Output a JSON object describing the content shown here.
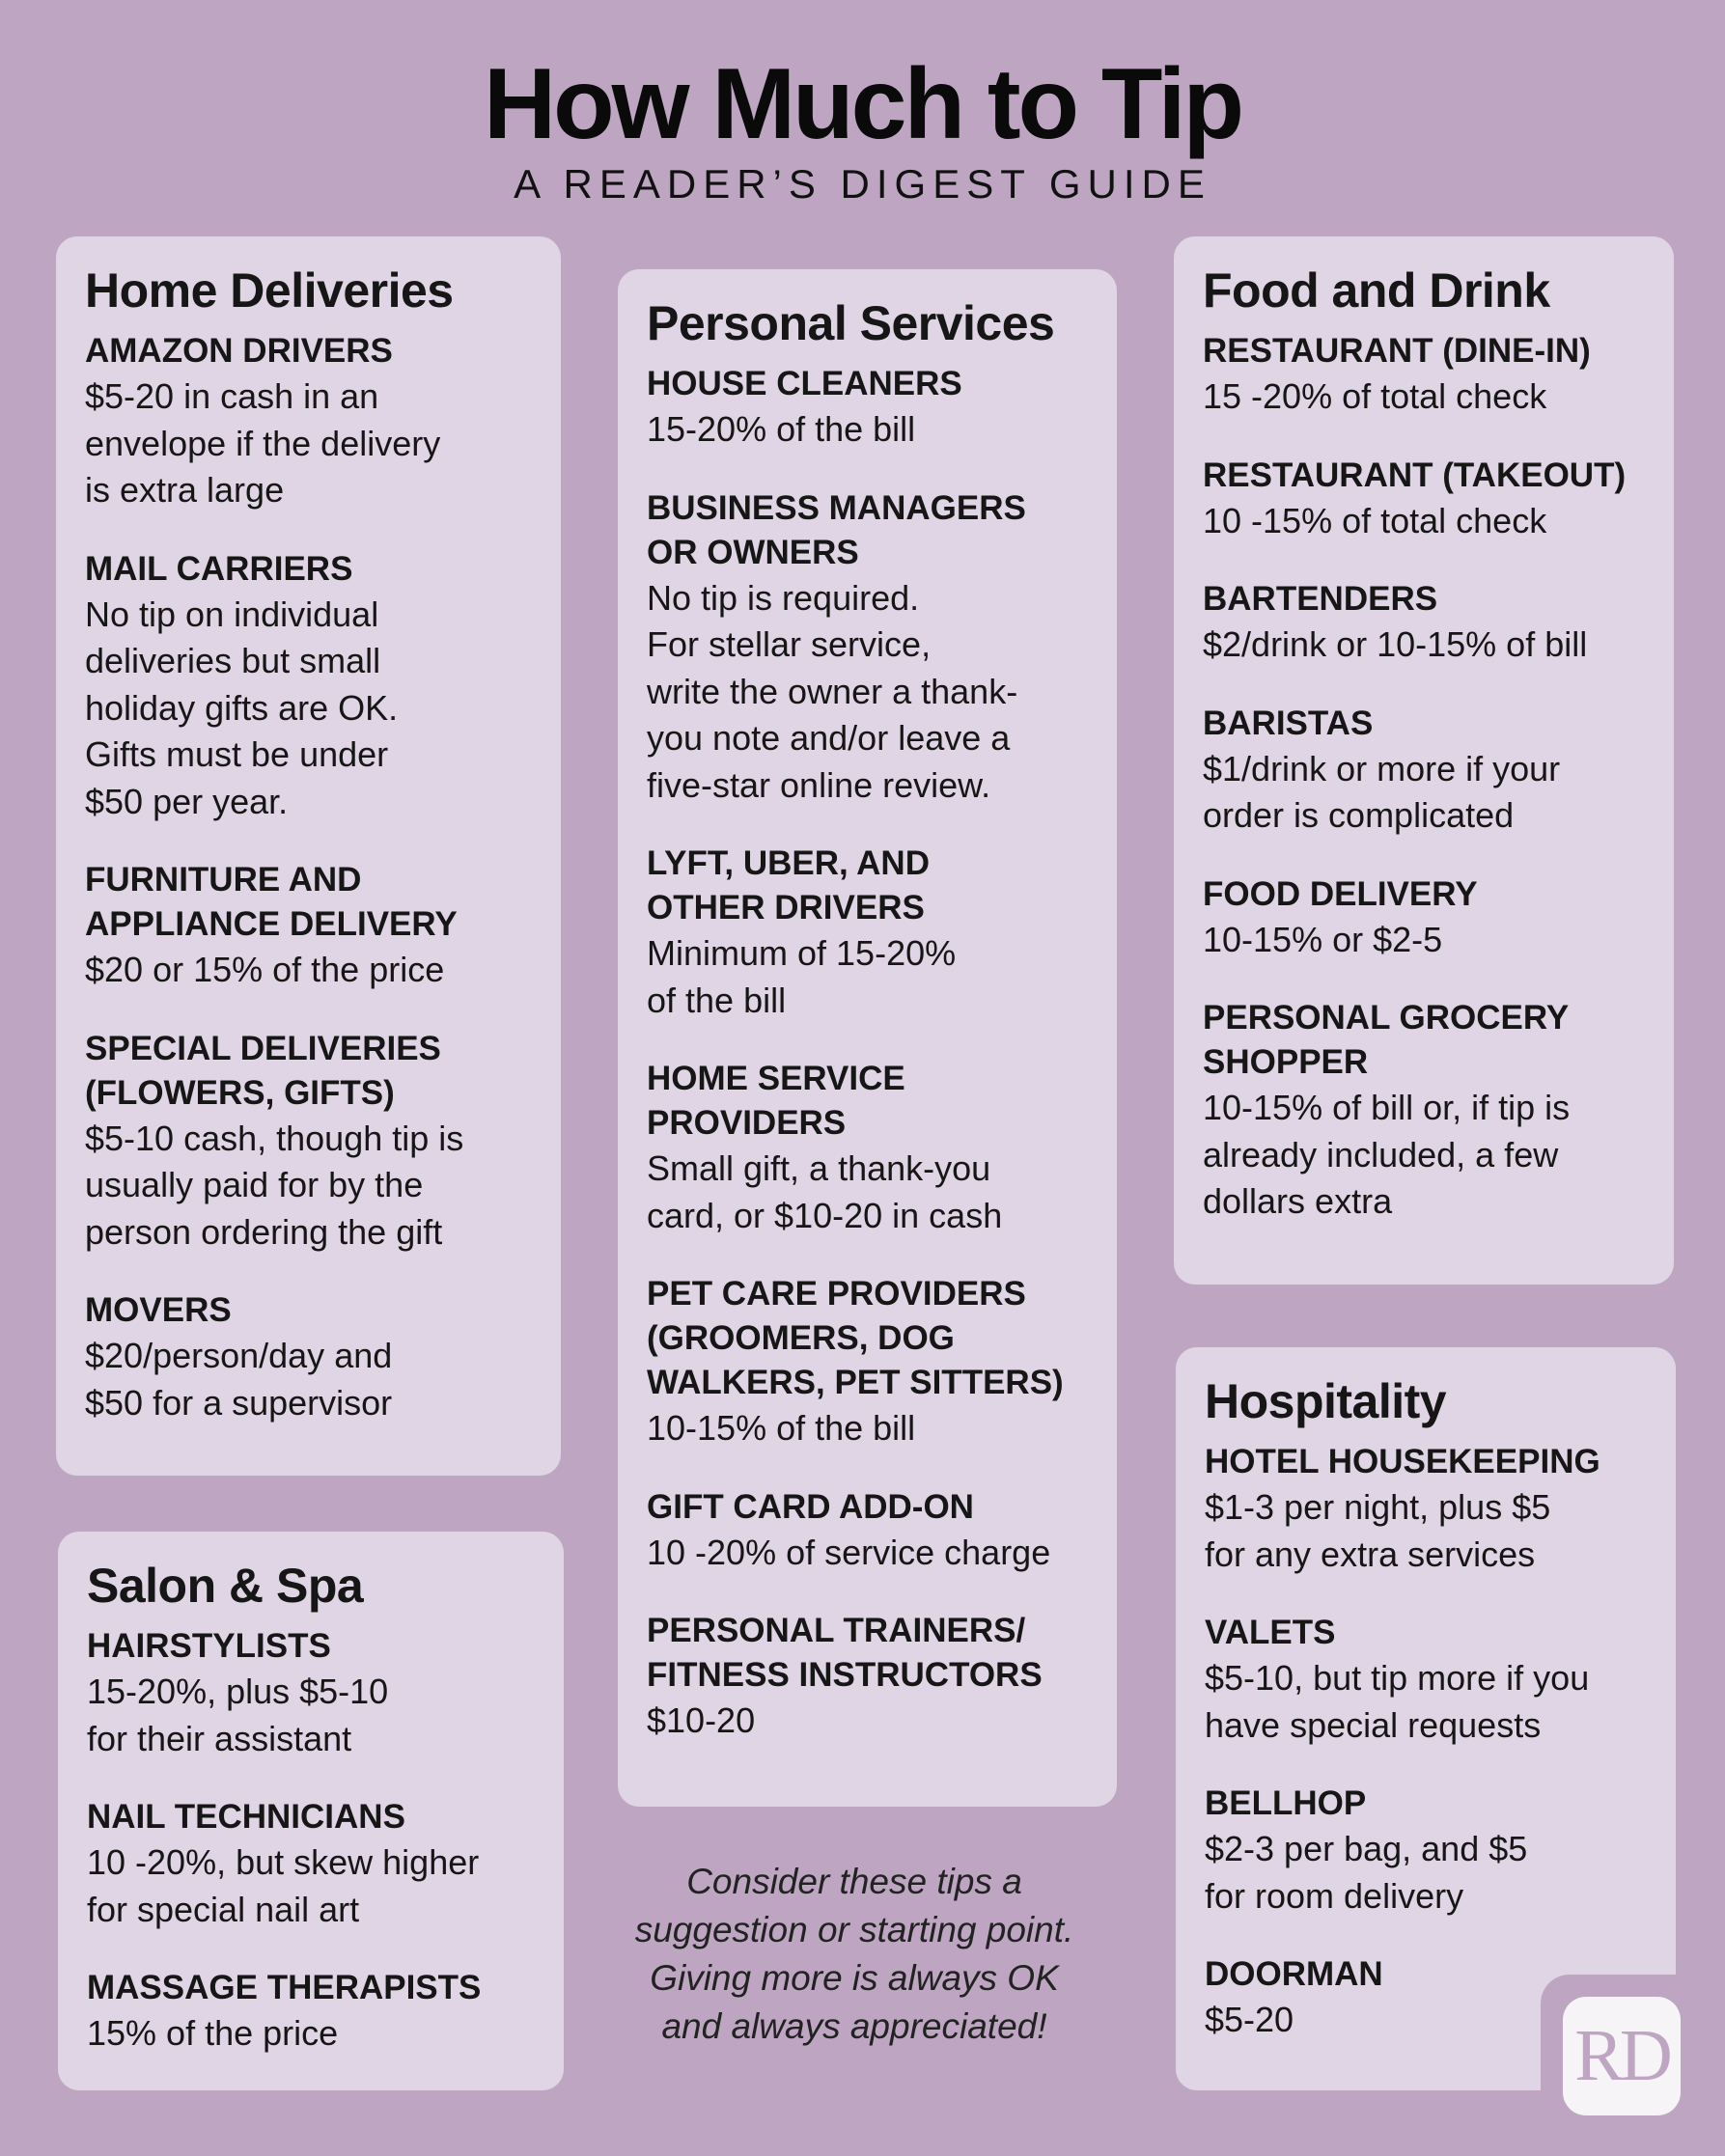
{
  "header": {
    "title": "How Much to Tip",
    "subtitle": "A READER’S DIGEST GUIDE"
  },
  "colors": {
    "background": "#bea6c3",
    "card": "#e0d5e4",
    "logo_text": "#bea6c3"
  },
  "home_deliveries": {
    "heading": "Home Deliveries",
    "items": [
      {
        "title": "AMAZON DRIVERS",
        "body": "$5-20 in cash in an\nenvelope if the delivery\nis extra large"
      },
      {
        "title": "MAIL CARRIERS",
        "body": "No tip on individual\ndeliveries but small\nholiday gifts are OK.\nGifts must be under\n$50 per year."
      },
      {
        "title": "FURNITURE AND\nAPPLIANCE DELIVERY",
        "body": "$20 or 15% of the price"
      },
      {
        "title": "SPECIAL DELIVERIES\n(FLOWERS, GIFTS)",
        "body": "$5-10 cash, though tip is\nusually paid for by the\nperson ordering the gift"
      },
      {
        "title": "MOVERS",
        "body": "$20/person/day and\n$50 for a supervisor"
      }
    ]
  },
  "salon_spa": {
    "heading": "Salon & Spa",
    "items": [
      {
        "title": "HAIRSTYLISTS",
        "body": "15-20%, plus $5-10\nfor their assistant"
      },
      {
        "title": "NAIL TECHNICIANS",
        "body": "10 -20%, but skew higher\nfor special nail art"
      },
      {
        "title": "MASSAGE THERAPISTS",
        "body": "15% of the price"
      }
    ]
  },
  "personal_services": {
    "heading": "Personal Services",
    "items": [
      {
        "title": "HOUSE CLEANERS",
        "body": "15-20% of the bill"
      },
      {
        "title": "BUSINESS MANAGERS\nOR OWNERS",
        "body": "No tip is required.\nFor stellar service,\nwrite the owner a thank-\nyou note and/or leave a\nfive-star online review."
      },
      {
        "title": "LYFT, UBER, AND\nOTHER DRIVERS",
        "body": "Minimum of 15-20%\nof the bill"
      },
      {
        "title": "HOME SERVICE\nPROVIDERS",
        "body": "Small gift, a thank-you\ncard, or $10-20 in cash"
      },
      {
        "title": "PET CARE PROVIDERS\n(GROOMERS, DOG\nWALKERS, PET SITTERS)",
        "body": "10-15% of the bill"
      },
      {
        "title": "GIFT CARD ADD-ON",
        "body": "10 -20% of service charge"
      },
      {
        "title": "PERSONAL TRAINERS/\nFITNESS INSTRUCTORS",
        "body": "$10-20"
      }
    ]
  },
  "food_drink": {
    "heading": "Food and Drink",
    "items": [
      {
        "title": "RESTAURANT (DINE-IN)",
        "body": "15 -20% of total check"
      },
      {
        "title": "RESTAURANT (TAKEOUT)",
        "body": "10 -15% of total check"
      },
      {
        "title": "BARTENDERS",
        "body": "$2/drink or 10-15% of bill"
      },
      {
        "title": "BARISTAS",
        "body": "$1/drink or more if your\norder is complicated"
      },
      {
        "title": "FOOD DELIVERY",
        "body": "10-15% or $2-5"
      },
      {
        "title": "PERSONAL GROCERY\nSHOPPER",
        "body": "10-15% of bill or, if tip is\nalready included, a few\ndollars extra"
      }
    ]
  },
  "hospitality": {
    "heading": "Hospitality",
    "items": [
      {
        "title": "HOTEL HOUSEKEEPING",
        "body": "$1-3 per night, plus $5\nfor any extra services"
      },
      {
        "title": "VALETS",
        "body": "$5-10, but tip more if you\nhave special requests"
      },
      {
        "title": "BELLHOP",
        "body": "$2-3 per bag, and $5\nfor room delivery"
      },
      {
        "title": "DOORMAN",
        "body": "$5-20"
      }
    ]
  },
  "note": "Consider these tips a\nsuggestion or starting point.\nGiving more is always OK\nand always appreciated!",
  "logo": {
    "text": "RD",
    "icon": "rd-logo"
  }
}
